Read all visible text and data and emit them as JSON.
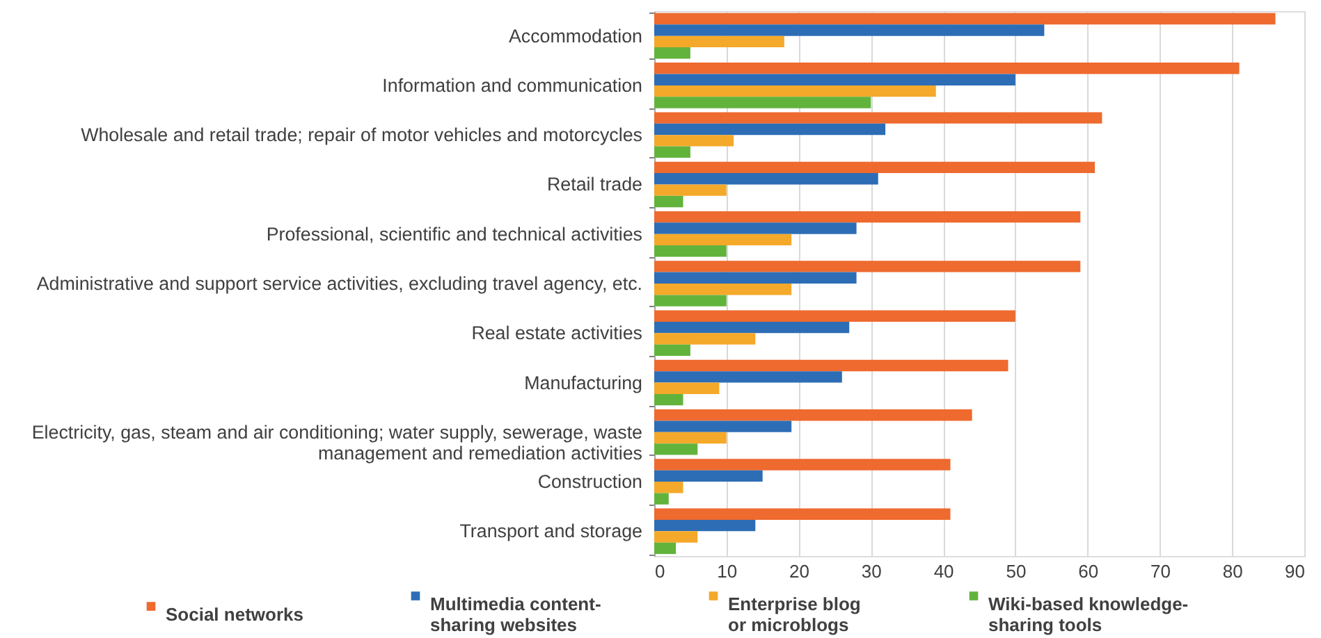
{
  "chart_data": {
    "type": "bar",
    "orientation": "horizontal",
    "categories": [
      "Accommodation",
      "Information and communication",
      "Wholesale and retail trade; repair of motor vehicles and motorcycles",
      "Retail trade",
      "Professional, scientific and technical activities",
      "Administrative and support service activities, excluding travel agency, etc.",
      "Real estate activities",
      "Manufacturing",
      "Electricity, gas, steam and air conditioning; water supply, sewerage, waste management and remediation activities",
      "Construction",
      "Transport and storage"
    ],
    "series": [
      {
        "name": "Social networks",
        "color": "#ee6a2e",
        "values": [
          86,
          81,
          62,
          61,
          59,
          59,
          50,
          49,
          44,
          41,
          41
        ]
      },
      {
        "name": "Multimedia content-sharing websites",
        "color": "#2d6db5",
        "values": [
          54,
          50,
          32,
          31,
          28,
          28,
          27,
          26,
          19,
          15,
          14
        ]
      },
      {
        "name": "Enterprise blog or microblogs",
        "color": "#f4a92a",
        "values": [
          18,
          39,
          11,
          10,
          19,
          19,
          14,
          9,
          10,
          4,
          6
        ]
      },
      {
        "name": "Wiki-based knowledge-sharing tools",
        "color": "#62b33c",
        "values": [
          5,
          30,
          5,
          4,
          10,
          10,
          5,
          4,
          6,
          2,
          3
        ]
      }
    ],
    "xlim": [
      0,
      90
    ],
    "xticks": [
      0,
      10,
      20,
      30,
      40,
      50,
      60,
      70,
      80,
      90
    ],
    "grid": "x",
    "legend": "bottom"
  }
}
